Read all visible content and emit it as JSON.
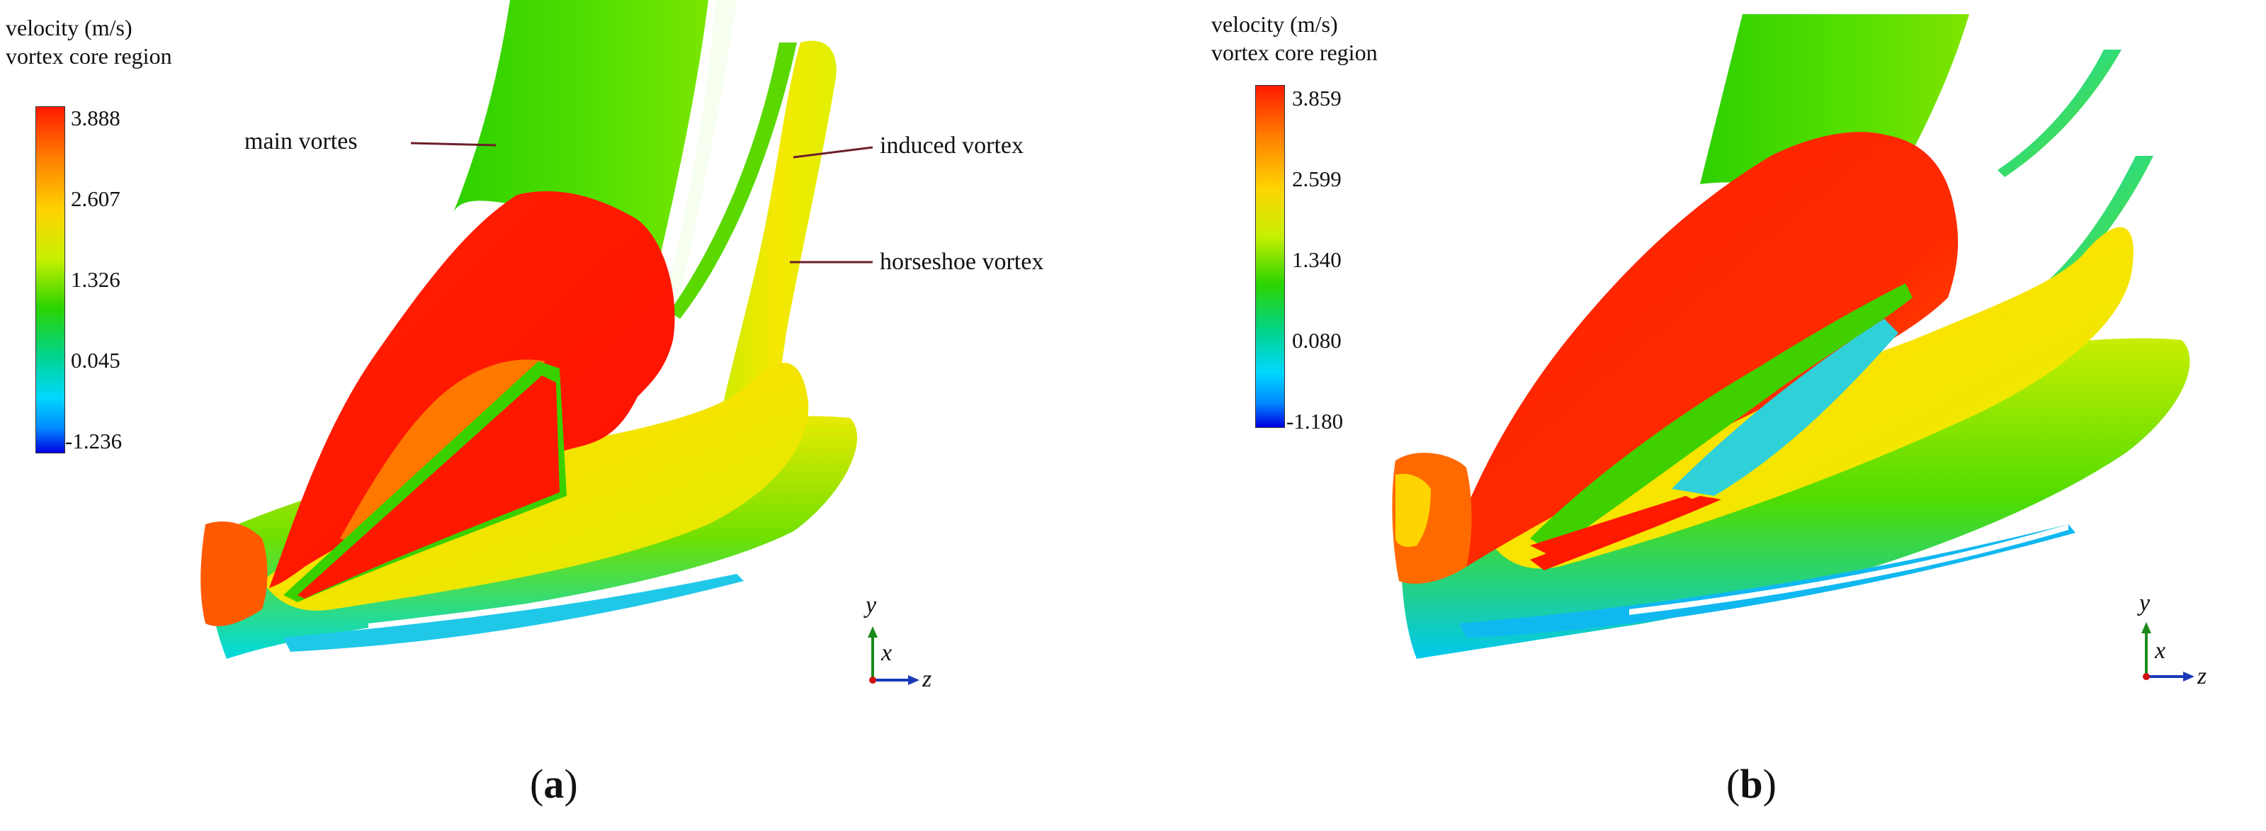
{
  "panel_a": {
    "legend": {
      "title_line1": "velocity (m/s)",
      "title_line2": "vortex core region",
      "ticks": [
        "3.888",
        "2.607",
        "1.326",
        "0.045",
        "-1.236"
      ]
    },
    "annotations": {
      "main_vortex": "main vortes",
      "induced_vortex": "induced vortex",
      "horseshoe_vortex": "horseshoe vortex"
    },
    "axes": {
      "y": "y",
      "x": "x",
      "z": "z"
    },
    "caption": {
      "open": "(",
      "letter": "a",
      "close": ")"
    }
  },
  "panel_b": {
    "legend": {
      "title_line1": "velocity (m/s)",
      "title_line2": "vortex core region",
      "ticks": [
        "3.859",
        "2.599",
        "1.340",
        "0.080",
        "-1.180"
      ]
    },
    "axes": {
      "y": "y",
      "x": "x",
      "z": "z"
    },
    "caption": {
      "open": "(",
      "letter": "b",
      "close": ")"
    }
  },
  "colors": {
    "red": "#ff1a00",
    "orange": "#ff8a00",
    "yellow": "#f2e600",
    "green": "#2cd400",
    "cyan": "#00d0f0",
    "blue": "#0000e0",
    "annotation_line": "#6b1f2a",
    "axis_y": "#1a8a1a",
    "axis_z": "#1a3ab8"
  }
}
